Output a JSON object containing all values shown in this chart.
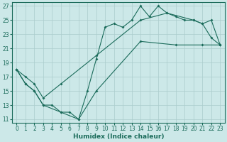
{
  "xlabel": "Humidex (Indice chaleur)",
  "xlim": [
    -0.5,
    23.5
  ],
  "ylim": [
    10.5,
    27.5
  ],
  "xticks": [
    0,
    1,
    2,
    3,
    4,
    5,
    6,
    7,
    8,
    9,
    10,
    11,
    12,
    13,
    14,
    15,
    16,
    17,
    18,
    19,
    20,
    21,
    22,
    23
  ],
  "yticks": [
    11,
    13,
    15,
    17,
    19,
    21,
    23,
    25,
    27
  ],
  "bg_color": "#cce8e8",
  "line_color": "#1a6b5a",
  "grid_color": "#aacccc",
  "jagged_x": [
    0,
    1,
    2,
    3,
    4,
    5,
    6,
    7,
    8,
    9,
    10,
    11,
    12,
    13,
    14,
    15,
    16,
    17,
    18,
    19,
    20,
    21,
    22,
    23
  ],
  "jagged_y": [
    18,
    16,
    15,
    13,
    13,
    12,
    12,
    11,
    15,
    19.5,
    24,
    24.5,
    24,
    25,
    27,
    25.5,
    27,
    26,
    25.5,
    25,
    25,
    24.5,
    22.5,
    21.5
  ],
  "upper_x": [
    0,
    1,
    2,
    3,
    5,
    9,
    14,
    17,
    20,
    21,
    22,
    23
  ],
  "upper_y": [
    18,
    17,
    16,
    14,
    16,
    20,
    25,
    26,
    25,
    24.5,
    25,
    21.5
  ],
  "lower_x": [
    0,
    1,
    2,
    3,
    5,
    7,
    9,
    14,
    18,
    21,
    23
  ],
  "lower_y": [
    18,
    16,
    15,
    13,
    12,
    11,
    15,
    22,
    21.5,
    21.5,
    21.5
  ]
}
